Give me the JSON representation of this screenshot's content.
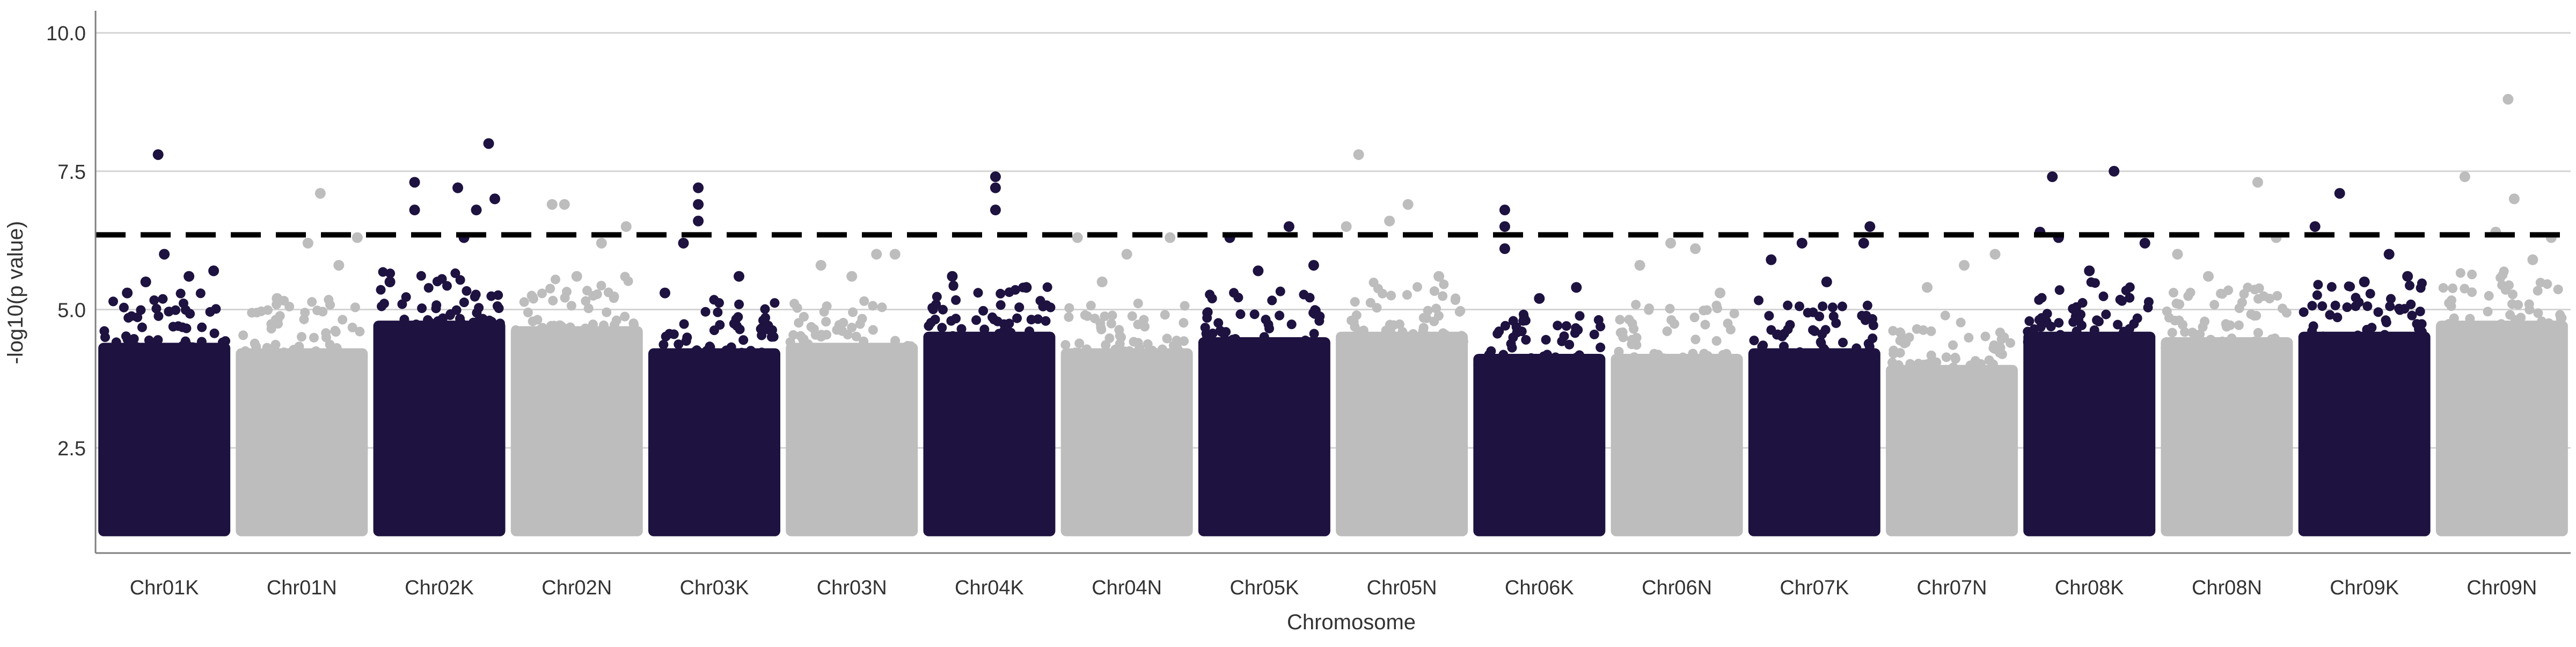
{
  "chart_data": {
    "type": "scatter",
    "subtype": "manhattan",
    "title": "",
    "xlabel": "Chromosome",
    "ylabel": "-log10(p value)",
    "ylim": [
      0.6,
      10.4
    ],
    "yticks": [
      2.5,
      5.0,
      7.5,
      10.0
    ],
    "ytick_labels": [
      "2.5",
      "5.0",
      "7.5",
      "10.0"
    ],
    "grid": "horizontal",
    "threshold": 6.35,
    "categories": [
      "Chr01K",
      "Chr01N",
      "Chr02K",
      "Chr02N",
      "Chr03K",
      "Chr03N",
      "Chr04K",
      "Chr04N",
      "Chr05K",
      "Chr05N",
      "Chr06K",
      "Chr06N",
      "Chr07K",
      "Chr07N",
      "Chr08K",
      "Chr08N",
      "Chr09K",
      "Chr09N"
    ],
    "colors": {
      "dark": "#1e1240",
      "light": "#bdbdbd",
      "threshold_line": "#000000",
      "grid": "#d4d4d4",
      "axis": "#7f7f7f",
      "text": "#333333"
    },
    "series": [
      {
        "category": "Chr01K",
        "color_group": "dark",
        "base_min": 1.0,
        "dense_top": 4.4,
        "top_points": [
          [
            0.2,
            5.3
          ],
          [
            0.35,
            5.5
          ],
          [
            0.5,
            6.0
          ],
          [
            0.45,
            7.8
          ],
          [
            0.7,
            5.6
          ],
          [
            0.9,
            5.7
          ]
        ]
      },
      {
        "category": "Chr01N",
        "color_group": "light",
        "base_min": 1.0,
        "dense_top": 4.3,
        "top_points": [
          [
            0.3,
            5.2
          ],
          [
            0.55,
            6.2
          ],
          [
            0.65,
            7.1
          ],
          [
            0.8,
            5.8
          ],
          [
            0.95,
            6.3
          ]
        ]
      },
      {
        "category": "Chr02K",
        "color_group": "dark",
        "base_min": 1.0,
        "dense_top": 4.8,
        "top_points": [
          [
            0.3,
            7.3
          ],
          [
            0.3,
            6.8
          ],
          [
            0.65,
            7.2
          ],
          [
            0.8,
            6.8
          ],
          [
            0.9,
            8.0
          ],
          [
            0.95,
            7.0
          ],
          [
            0.7,
            6.3
          ],
          [
            0.1,
            5.5
          ]
        ]
      },
      {
        "category": "Chr02N",
        "color_group": "light",
        "base_min": 1.0,
        "dense_top": 4.7,
        "top_points": [
          [
            0.3,
            6.9
          ],
          [
            0.4,
            6.9
          ],
          [
            0.7,
            6.2
          ],
          [
            0.9,
            6.5
          ],
          [
            0.5,
            5.6
          ]
        ]
      },
      {
        "category": "Chr03K",
        "color_group": "dark",
        "base_min": 1.0,
        "dense_top": 4.3,
        "top_points": [
          [
            0.37,
            7.2
          ],
          [
            0.37,
            6.9
          ],
          [
            0.37,
            6.6
          ],
          [
            0.25,
            6.2
          ],
          [
            0.7,
            5.6
          ],
          [
            0.1,
            5.3
          ]
        ]
      },
      {
        "category": "Chr03N",
        "color_group": "light",
        "base_min": 1.0,
        "dense_top": 4.4,
        "top_points": [
          [
            0.25,
            5.8
          ],
          [
            0.7,
            6.0
          ],
          [
            0.85,
            6.0
          ],
          [
            0.5,
            5.6
          ]
        ]
      },
      {
        "category": "Chr04K",
        "color_group": "dark",
        "base_min": 1.0,
        "dense_top": 4.6,
        "top_points": [
          [
            0.55,
            7.4
          ],
          [
            0.55,
            7.2
          ],
          [
            0.55,
            6.8
          ],
          [
            0.2,
            5.6
          ],
          [
            0.8,
            5.4
          ]
        ]
      },
      {
        "category": "Chr04N",
        "color_group": "light",
        "base_min": 1.0,
        "dense_top": 4.3,
        "top_points": [
          [
            0.1,
            6.3
          ],
          [
            0.5,
            6.0
          ],
          [
            0.85,
            6.3
          ],
          [
            0.3,
            5.5
          ]
        ]
      },
      {
        "category": "Chr05K",
        "color_group": "dark",
        "base_min": 1.0,
        "dense_top": 4.5,
        "top_points": [
          [
            0.22,
            6.3
          ],
          [
            0.45,
            5.7
          ],
          [
            0.7,
            6.5
          ],
          [
            0.9,
            5.8
          ]
        ]
      },
      {
        "category": "Chr05N",
        "color_group": "light",
        "base_min": 1.0,
        "dense_top": 4.6,
        "top_points": [
          [
            0.15,
            7.8
          ],
          [
            0.4,
            6.6
          ],
          [
            0.55,
            6.9
          ],
          [
            0.8,
            5.6
          ],
          [
            0.05,
            6.5
          ]
        ]
      },
      {
        "category": "Chr06K",
        "color_group": "dark",
        "base_min": 1.0,
        "dense_top": 4.2,
        "top_points": [
          [
            0.22,
            6.8
          ],
          [
            0.22,
            6.5
          ],
          [
            0.22,
            6.1
          ],
          [
            0.5,
            5.2
          ],
          [
            0.8,
            5.4
          ]
        ]
      },
      {
        "category": "Chr06N",
        "color_group": "light",
        "base_min": 1.0,
        "dense_top": 4.2,
        "top_points": [
          [
            0.2,
            5.8
          ],
          [
            0.45,
            6.2
          ],
          [
            0.65,
            6.1
          ],
          [
            0.85,
            5.3
          ]
        ]
      },
      {
        "category": "Chr07K",
        "color_group": "dark",
        "base_min": 1.0,
        "dense_top": 4.3,
        "top_points": [
          [
            0.15,
            5.9
          ],
          [
            0.4,
            6.2
          ],
          [
            0.6,
            5.5
          ],
          [
            0.95,
            6.5
          ],
          [
            0.9,
            6.2
          ]
        ]
      },
      {
        "category": "Chr07N",
        "color_group": "light",
        "base_min": 1.0,
        "dense_top": 4.0,
        "top_points": [
          [
            0.3,
            5.4
          ],
          [
            0.6,
            5.8
          ],
          [
            0.85,
            6.0
          ]
        ]
      },
      {
        "category": "Chr08K",
        "color_group": "dark",
        "base_min": 1.0,
        "dense_top": 4.6,
        "top_points": [
          [
            0.2,
            7.4
          ],
          [
            0.1,
            6.4
          ],
          [
            0.25,
            6.3
          ],
          [
            0.7,
            7.5
          ],
          [
            0.95,
            6.2
          ],
          [
            0.5,
            5.7
          ]
        ]
      },
      {
        "category": "Chr08N",
        "color_group": "light",
        "base_min": 1.0,
        "dense_top": 4.5,
        "top_points": [
          [
            0.1,
            6.0
          ],
          [
            0.35,
            5.6
          ],
          [
            0.75,
            7.3
          ],
          [
            0.9,
            6.3
          ]
        ]
      },
      {
        "category": "Chr09K",
        "color_group": "dark",
        "base_min": 1.0,
        "dense_top": 4.6,
        "top_points": [
          [
            0.1,
            6.5
          ],
          [
            0.3,
            7.1
          ],
          [
            0.5,
            5.5
          ],
          [
            0.7,
            6.0
          ],
          [
            0.85,
            5.6
          ]
        ]
      },
      {
        "category": "Chr09N",
        "color_group": "light",
        "base_min": 1.0,
        "dense_top": 4.8,
        "top_points": [
          [
            0.2,
            7.4
          ],
          [
            0.55,
            8.8
          ],
          [
            0.6,
            7.0
          ],
          [
            0.45,
            6.4
          ],
          [
            0.9,
            6.3
          ],
          [
            0.75,
            5.9
          ]
        ]
      }
    ]
  }
}
